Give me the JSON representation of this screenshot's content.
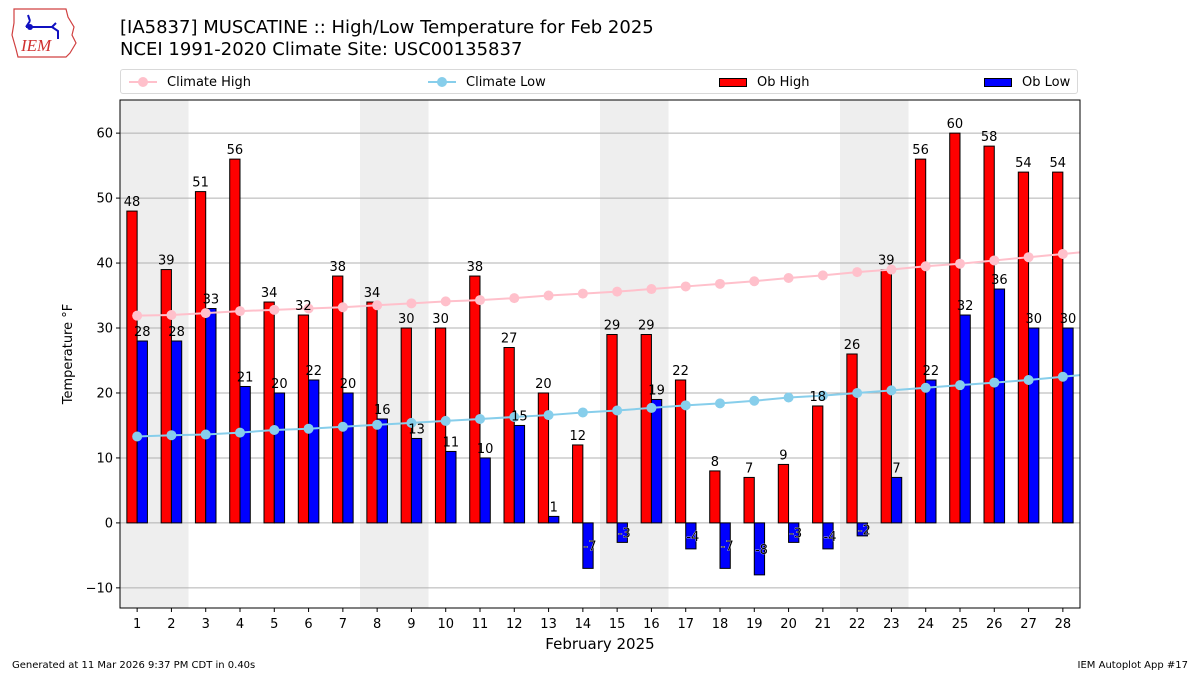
{
  "header": {
    "title_line1": "[IA5837] MUSCATINE :: High/Low Temperature for Feb 2025",
    "title_line2": "NCEI 1991-2020 Climate Site: USC00135837",
    "logo_text": "IEM"
  },
  "footer": {
    "generated": "Generated at 11 Mar 2026 9:37 PM CDT in 0.40s",
    "app": "IEM Autoplot App #17"
  },
  "colors": {
    "ob_high": "#ff0000",
    "ob_low": "#0000ff",
    "climate_high": "#ffc0cb",
    "climate_low": "#87ceeb",
    "weekend_shade": "#eeeeee",
    "grid": "#b0b0b0"
  },
  "chart_data": {
    "type": "bar",
    "title": "[IA5837] MUSCATINE :: High/Low Temperature for Feb 2025",
    "subtitle": "NCEI 1991-2020 Climate Site: USC00135837",
    "xlabel": "February 2025",
    "ylabel": "Temperature °F",
    "xlim": [
      0.5,
      28.5
    ],
    "ylim": [
      -13.1,
      65.1
    ],
    "yticks": [
      -10,
      0,
      10,
      20,
      30,
      40,
      50,
      60
    ],
    "ytick_labels": [
      "−10",
      "0",
      "10",
      "20",
      "30",
      "40",
      "50",
      "60"
    ],
    "grid": "y",
    "legend_placement": "top",
    "categories": [
      1,
      2,
      3,
      4,
      5,
      6,
      7,
      8,
      9,
      10,
      11,
      12,
      13,
      14,
      15,
      16,
      17,
      18,
      19,
      20,
      21,
      22,
      23,
      24,
      25,
      26,
      27,
      28
    ],
    "shaded_weekends": [
      [
        1,
        2
      ],
      [
        8,
        9
      ],
      [
        15,
        16
      ],
      [
        22,
        23
      ]
    ],
    "series": [
      {
        "name": "Climate High",
        "kind": "line",
        "values": [
          31.9,
          32.0,
          32.3,
          32.6,
          32.8,
          33.0,
          33.2,
          33.5,
          33.8,
          34.1,
          34.3,
          34.6,
          35.0,
          35.3,
          35.6,
          36.0,
          36.4,
          36.8,
          37.2,
          37.7,
          38.1,
          38.6,
          39.0,
          39.5,
          39.9,
          40.4,
          40.9,
          41.4
        ]
      },
      {
        "name": "Climate Low",
        "kind": "line",
        "values": [
          13.3,
          13.5,
          13.6,
          13.9,
          14.3,
          14.5,
          14.8,
          15.1,
          15.4,
          15.7,
          16.0,
          16.3,
          16.6,
          17.0,
          17.3,
          17.7,
          18.1,
          18.4,
          18.8,
          19.3,
          19.6,
          20.0,
          20.4,
          20.8,
          21.2,
          21.6,
          22.0,
          22.5
        ]
      },
      {
        "name": "Ob High",
        "kind": "bar",
        "values": [
          48,
          39,
          51,
          56,
          34,
          32,
          38,
          34,
          30,
          30,
          38,
          27,
          20,
          12,
          29,
          29,
          22,
          8,
          7,
          9,
          18,
          26,
          39,
          56,
          60,
          58,
          54,
          54
        ]
      },
      {
        "name": "Ob Low",
        "kind": "bar",
        "values": [
          28,
          28,
          33,
          21,
          20,
          22,
          20,
          16,
          13,
          11,
          10,
          15,
          1,
          -7,
          -3,
          19,
          -4,
          -7,
          -8,
          -3,
          -4,
          -2,
          7,
          22,
          32,
          36,
          30,
          30
        ]
      }
    ]
  }
}
